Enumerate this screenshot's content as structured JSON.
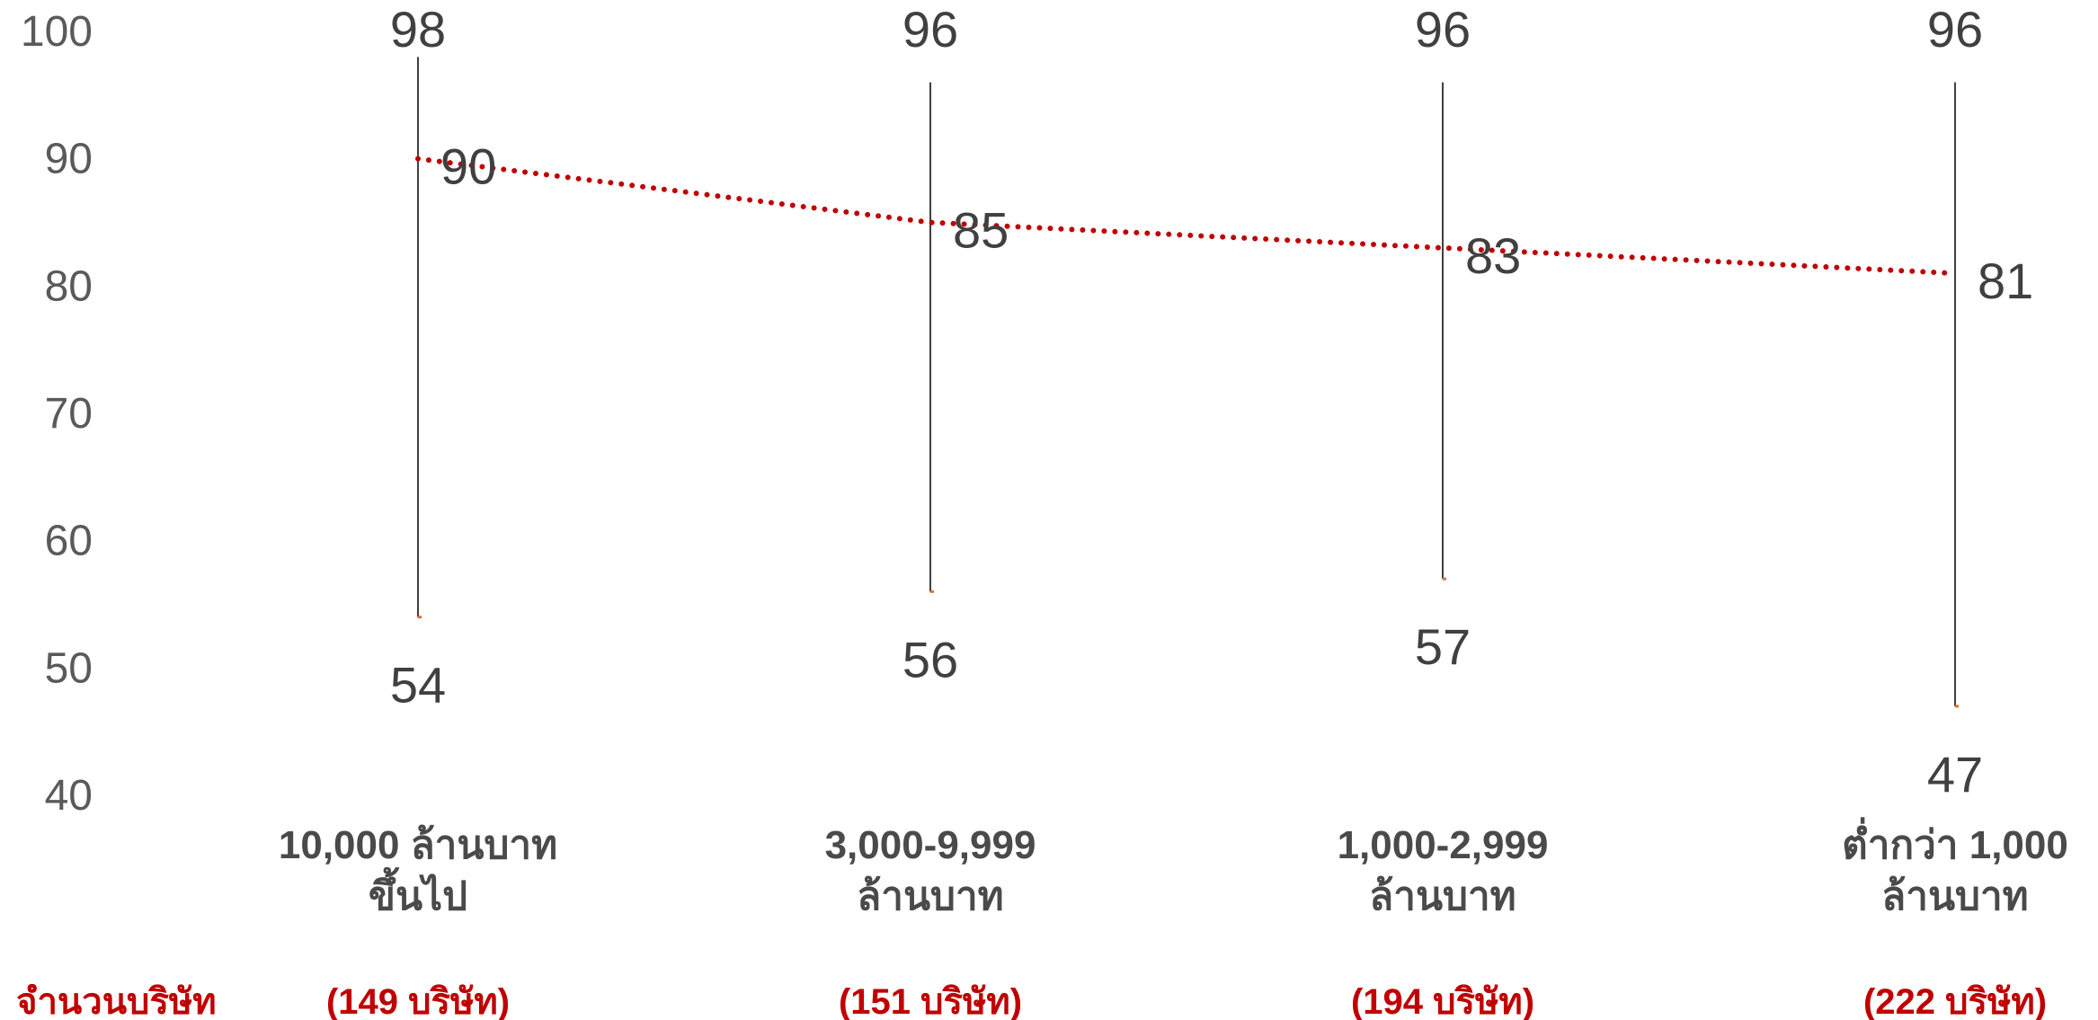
{
  "chart_data": {
    "type": "line",
    "title": "",
    "xlabel": "",
    "ylabel": "",
    "ylim": [
      40,
      100
    ],
    "yticks": [
      "100",
      "90",
      "80",
      "70",
      "60",
      "50",
      "40"
    ],
    "categories": [
      {
        "line1": "10,000 ล้านบาท",
        "line2": "ขึ้นไป",
        "count": "(149 บริษัท)"
      },
      {
        "line1": "3,000-9,999",
        "line2": "ล้านบาท",
        "count": "(151 บริษัท)"
      },
      {
        "line1": "1,000-2,999",
        "line2": "ล้านบาท",
        "count": "(194 บริษัท)"
      },
      {
        "line1": "ต่ำกว่า 1,000",
        "line2": "ล้านบาท",
        "count": "(222 บริษัท)"
      }
    ],
    "max": [
      98,
      96,
      96,
      96
    ],
    "min": [
      54,
      56,
      57,
      47
    ],
    "series": [
      {
        "values": [
          90,
          85,
          83,
          81
        ]
      }
    ],
    "row_label": "จำนวนบริษัท",
    "colors": {
      "line": "#c00000",
      "whisker": "#404040",
      "cap": "#e07030",
      "text": "#404040",
      "count": "#c00000"
    }
  }
}
